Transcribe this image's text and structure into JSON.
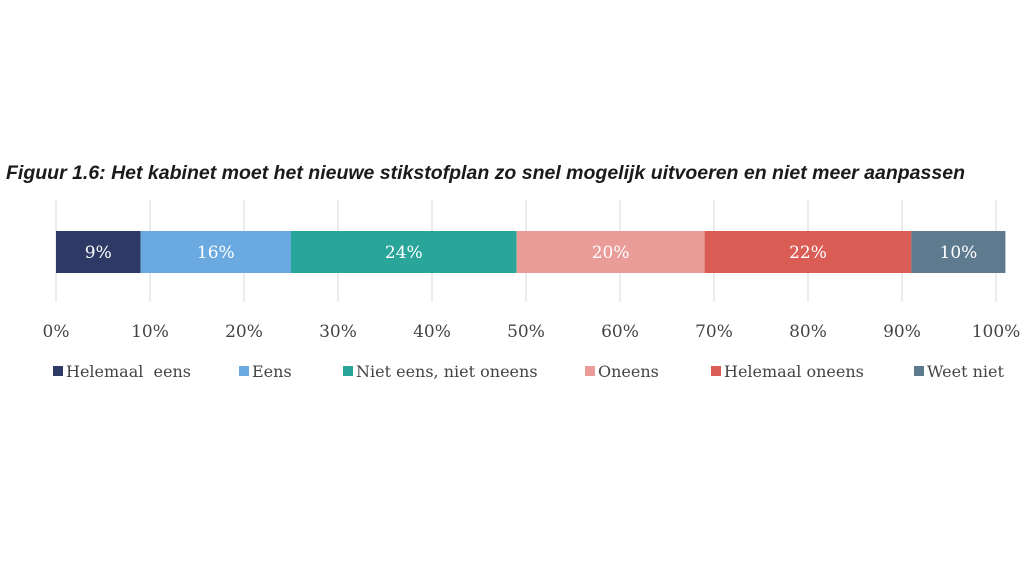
{
  "chart_data": {
    "type": "bar",
    "orientation": "horizontal",
    "stacked": true,
    "title": "Figuur 1.6: Het kabinet moet het nieuwe stikstofplan zo snel mogelijk uitvoeren en niet meer aanpassen",
    "categories": [
      ""
    ],
    "series": [
      {
        "name": "Helemaal  eens",
        "values": [
          9
        ],
        "label": "9%",
        "color": "#2f3966"
      },
      {
        "name": "Eens",
        "values": [
          16
        ],
        "label": "16%",
        "color": "#6aaae0"
      },
      {
        "name": "Niet eens, niet oneens",
        "values": [
          24
        ],
        "label": "24%",
        "color": "#2aa59a"
      },
      {
        "name": "Oneens",
        "values": [
          20
        ],
        "label": "20%",
        "color": "#e99c98"
      },
      {
        "name": "Helemaal oneens",
        "values": [
          22
        ],
        "label": "22%",
        "color": "#d95c55"
      },
      {
        "name": "Weet niet",
        "values": [
          10
        ],
        "label": "10%",
        "color": "#5e7a8f"
      }
    ],
    "xlim": [
      0,
      100
    ],
    "x_ticks": [
      0,
      10,
      20,
      30,
      40,
      50,
      60,
      70,
      80,
      90,
      100
    ],
    "x_tick_labels": [
      "0%",
      "10%",
      "20%",
      "30%",
      "40%",
      "50%",
      "60%",
      "70%",
      "80%",
      "90%",
      "100%"
    ],
    "grid": true,
    "legend_position": "bottom"
  }
}
